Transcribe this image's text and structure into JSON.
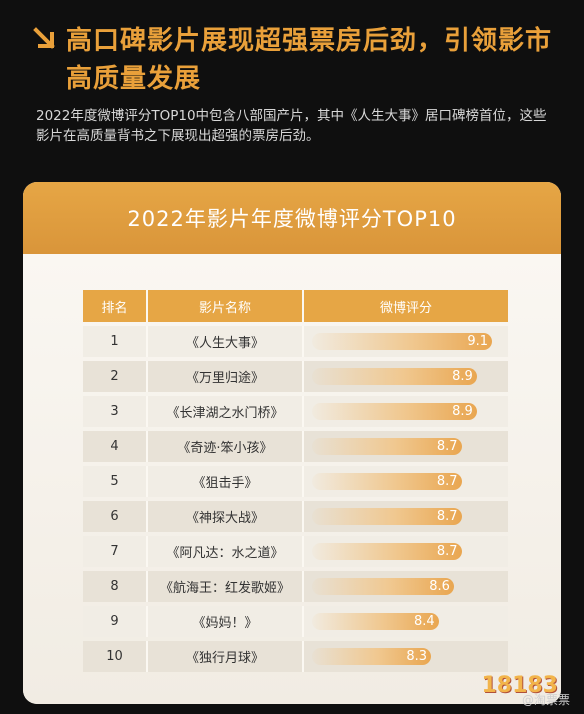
{
  "header": {
    "title": "高口碑影片展现超强票房后劲，引领影市高质量发展",
    "intro": "2022年度微博评分TOP10中包含八部国产片，其中《人生大事》居口碑榜首位，这些影片在高质量背书之下展现出超强的票房后劲。"
  },
  "card": {
    "title": "2022年影片年度微博评分TOP10"
  },
  "colors": {
    "accent": "#e6a645",
    "bg": "#0f0f0f",
    "title": "#e9a03a"
  },
  "chart_data": {
    "type": "table",
    "title": "2022年影片年度微博评分TOP10",
    "columns": [
      "排名",
      "影片名称",
      "微博评分"
    ],
    "rows": [
      {
        "rank": "1",
        "name": "《人生大事》",
        "score": 9.1
      },
      {
        "rank": "2",
        "name": "《万里归途》",
        "score": 8.9
      },
      {
        "rank": "3",
        "name": "《长津湖之水门桥》",
        "score": 8.9
      },
      {
        "rank": "4",
        "name": "《奇迹·笨小孩》",
        "score": 8.7
      },
      {
        "rank": "5",
        "name": "《狙击手》",
        "score": 8.7
      },
      {
        "rank": "6",
        "name": "《神探大战》",
        "score": 8.7
      },
      {
        "rank": "7",
        "name": "《阿凡达：水之道》",
        "score": 8.7
      },
      {
        "rank": "8",
        "name": "《航海王：红发歌姬》",
        "score": 8.6
      },
      {
        "rank": "9",
        "name": "《妈妈！》",
        "score": 8.4
      },
      {
        "rank": "10",
        "name": "《独行月球》",
        "score": 8.3
      }
    ]
  },
  "watermark": {
    "text": "@淘票票",
    "logo": "18183"
  }
}
